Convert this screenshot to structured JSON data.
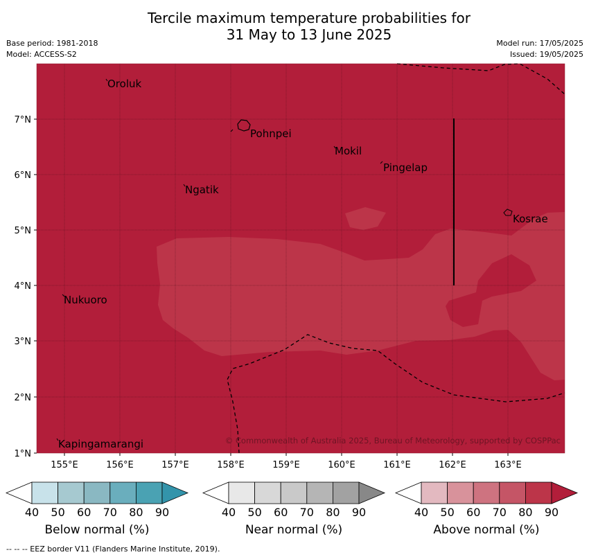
{
  "title": {
    "line1": "Tercile maximum temperature probabilities for",
    "line2": "31 May to 13 June 2025"
  },
  "meta": {
    "base_period": "Base period: 1981-2018",
    "model": "Model: ACCESS-S2",
    "model_run": "Model run: 17/05/2025",
    "issued": "Issued: 19/05/2025"
  },
  "map": {
    "x_ticks": [
      "155°E",
      "156°E",
      "157°E",
      "158°E",
      "159°E",
      "160°E",
      "161°E",
      "162°E",
      "163°E"
    ],
    "y_ticks": [
      "7°N",
      "6°N",
      "5°N",
      "4°N",
      "3°N",
      "2°N",
      "1°N"
    ],
    "places": [
      "Oroluk",
      "Pohnpei",
      "Mokil",
      "Pingelap",
      "Ngatik",
      "Kosrae",
      "Nukuoro",
      "Kapingamarangi"
    ],
    "copyright": "© Commonwealth of Australia 2025, Bureau of Meteorology, supported by COSPPac",
    "colors": {
      "above_90": "#b21e3a",
      "above_80": "#bc3549",
      "border": "#000000"
    }
  },
  "colorbars": [
    {
      "label": "Below normal (%)",
      "ticks": [
        "40",
        "50",
        "60",
        "70",
        "80",
        "90"
      ],
      "colors": [
        "#ffffff",
        "#c8e2ea",
        "#a6c9d0",
        "#8ab8c2",
        "#6aaebd",
        "#4aa2b3",
        "#3394ab"
      ]
    },
    {
      "label": "Near normal (%)",
      "ticks": [
        "40",
        "50",
        "60",
        "70",
        "80",
        "90"
      ],
      "colors": [
        "#ffffff",
        "#e8e8e8",
        "#d8d8d8",
        "#c9c9c9",
        "#b5b5b5",
        "#a2a2a2",
        "#888888"
      ]
    },
    {
      "label": "Above normal (%)",
      "ticks": [
        "40",
        "50",
        "60",
        "70",
        "80",
        "90"
      ],
      "colors": [
        "#ffffff",
        "#e3b9c0",
        "#d8929b",
        "#ce7380",
        "#c55566",
        "#bc3549",
        "#b21e3a"
      ]
    }
  ],
  "footer": "--  --  -- EEZ border V11 (Flanders Marine Institute, 2019)."
}
